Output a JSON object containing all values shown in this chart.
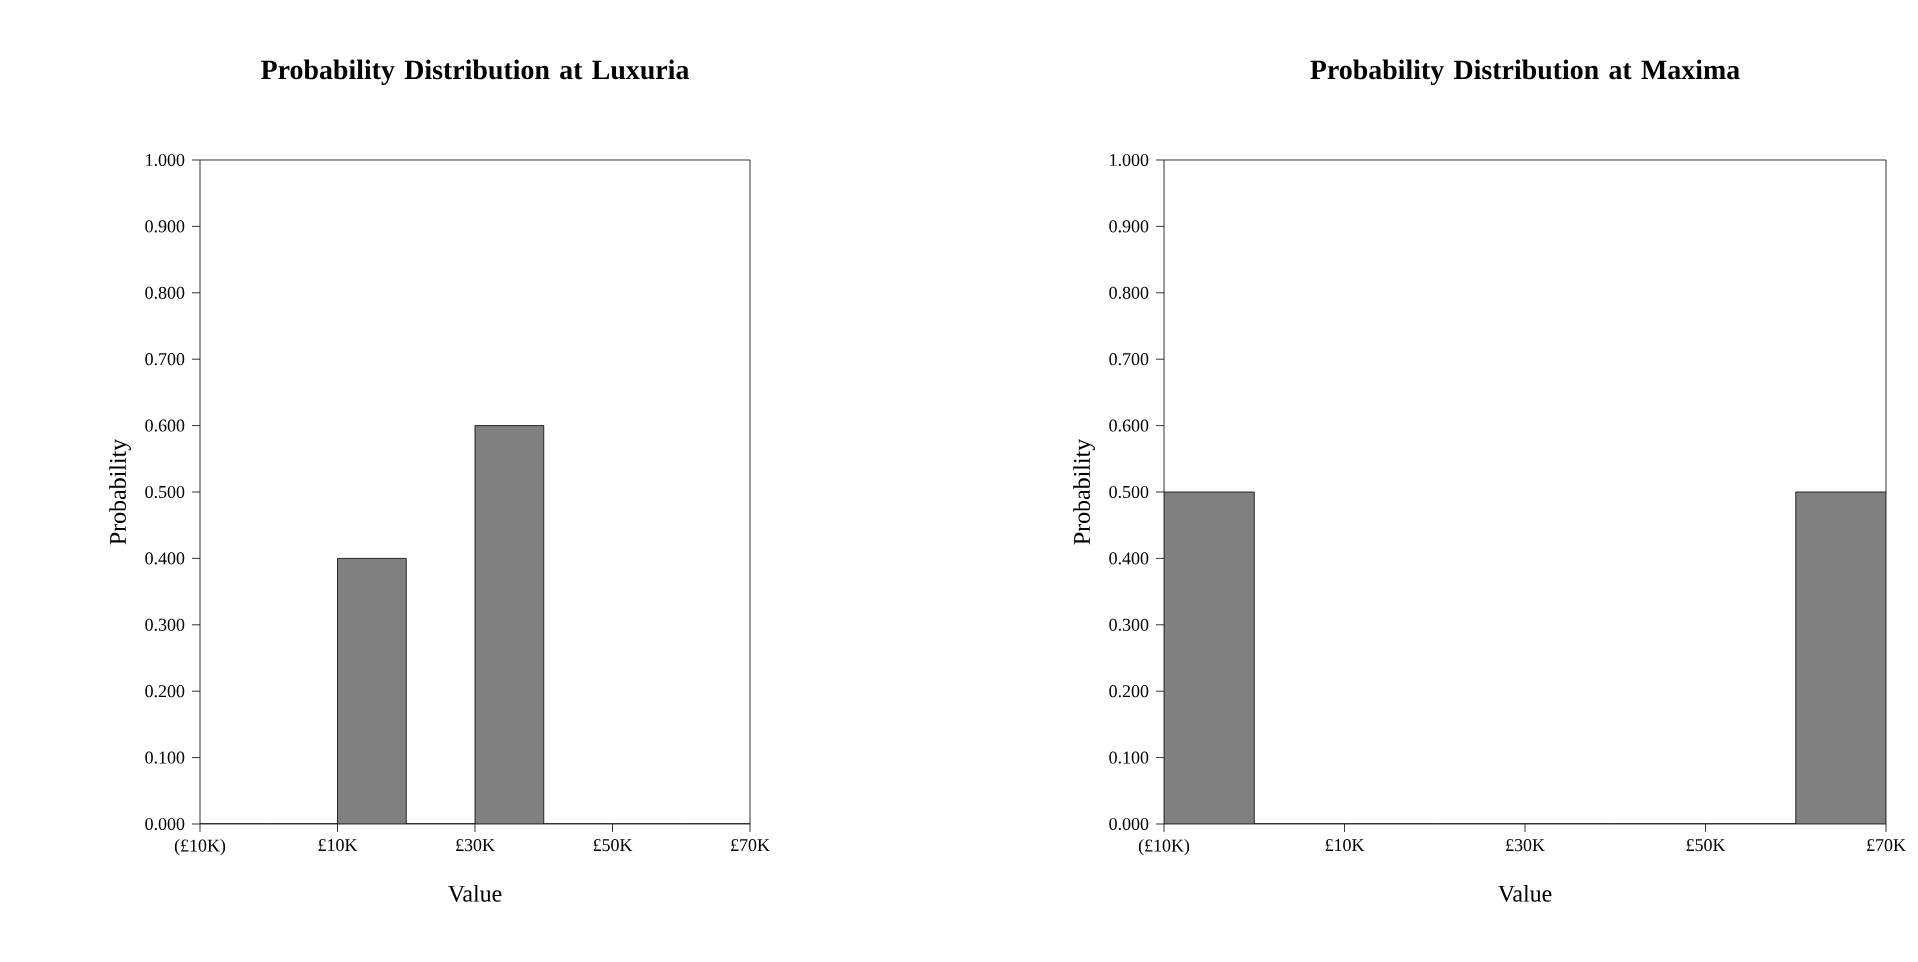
{
  "chart_data": [
    {
      "type": "histogram",
      "title": "Probability Distribution at Luxuria",
      "xlabel": "Value",
      "ylabel": "Probability",
      "color": "#808080",
      "bins": [
        -10,
        0,
        10,
        20,
        30,
        40,
        50,
        60,
        70
      ],
      "values": [
        0,
        0,
        0.4,
        0,
        0.6,
        0,
        0,
        0
      ],
      "xlim": [
        -10,
        70
      ],
      "xticks": [
        {
          "value": -10,
          "label": "(£10K)"
        },
        {
          "value": 10,
          "label": "£10K"
        },
        {
          "value": 30,
          "label": "£30K"
        },
        {
          "value": 50,
          "label": "£50K"
        },
        {
          "value": 70,
          "label": "£70K"
        }
      ],
      "ylim": [
        0,
        1
      ],
      "yticks": [
        {
          "value": 0,
          "label": "0.000"
        },
        {
          "value": 0.1,
          "label": "0.100"
        },
        {
          "value": 0.2,
          "label": "0.200"
        },
        {
          "value": 0.3,
          "label": "0.300"
        },
        {
          "value": 0.4,
          "label": "0.400"
        },
        {
          "value": 0.5,
          "label": "0.500"
        },
        {
          "value": 0.6,
          "label": "0.600"
        },
        {
          "value": 0.7,
          "label": "0.700"
        },
        {
          "value": 0.8,
          "label": "0.800"
        },
        {
          "value": 0.9,
          "label": "0.900"
        },
        {
          "value": 1,
          "label": "1.000"
        }
      ]
    },
    {
      "type": "histogram",
      "title": "Probability Distribution at Maxima",
      "xlabel": "Value",
      "ylabel": "Probability",
      "color": "#808080",
      "bins": [
        -10,
        0,
        10,
        20,
        30,
        40,
        50,
        60,
        70
      ],
      "values": [
        0.5,
        0,
        0,
        0,
        0,
        0,
        0,
        0.5
      ],
      "xlim": [
        -10,
        70
      ],
      "xticks": [
        {
          "value": -10,
          "label": "(£10K)"
        },
        {
          "value": 10,
          "label": "£10K"
        },
        {
          "value": 30,
          "label": "£30K"
        },
        {
          "value": 50,
          "label": "£50K"
        },
        {
          "value": 70,
          "label": "£70K"
        }
      ],
      "ylim": [
        0,
        1
      ],
      "yticks": [
        {
          "value": 0,
          "label": "0.000"
        },
        {
          "value": 0.1,
          "label": "0.100"
        },
        {
          "value": 0.2,
          "label": "0.200"
        },
        {
          "value": 0.3,
          "label": "0.300"
        },
        {
          "value": 0.4,
          "label": "0.400"
        },
        {
          "value": 0.5,
          "label": "0.500"
        },
        {
          "value": 0.6,
          "label": "0.600"
        },
        {
          "value": 0.7,
          "label": "0.700"
        },
        {
          "value": 0.8,
          "label": "0.800"
        },
        {
          "value": 0.9,
          "label": "0.900"
        },
        {
          "value": 1,
          "label": "1.000"
        }
      ]
    }
  ]
}
